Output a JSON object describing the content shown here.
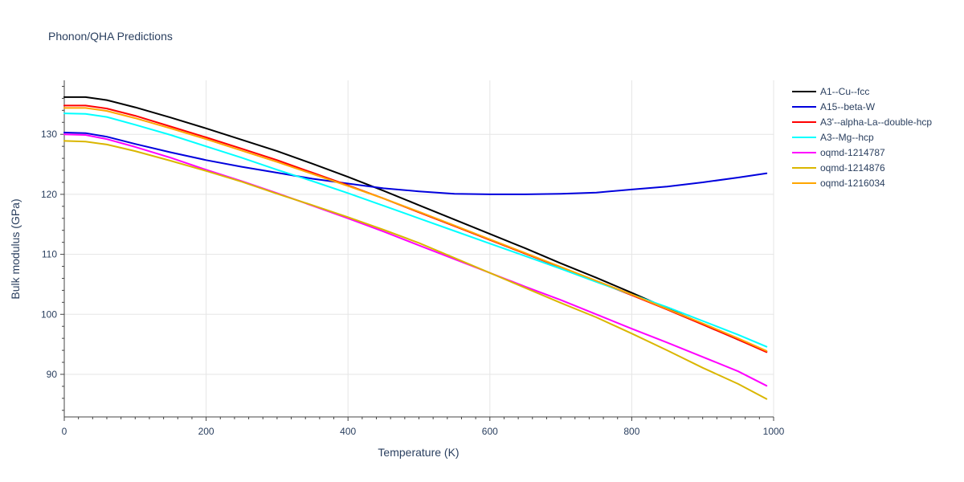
{
  "chart_data": {
    "type": "line",
    "title": "Phonon/QHA Predictions",
    "xlabel": "Temperature (K)",
    "ylabel": "Bulk modulus (GPa)",
    "xlim": [
      0,
      1000
    ],
    "ylim": [
      82.9,
      139.0
    ],
    "xticks": [
      0,
      200,
      400,
      600,
      800,
      1000
    ],
    "yticks": [
      90,
      100,
      110,
      120,
      130
    ],
    "grid": true,
    "legend_position": "right",
    "series": [
      {
        "name": "A1--Cu--fcc",
        "color": "#000000",
        "x": [
          0,
          30,
          60,
          100,
          150,
          200,
          250,
          300,
          350,
          400,
          450,
          500,
          550,
          600,
          650,
          700,
          750,
          800,
          850,
          900,
          950,
          990
        ],
        "y": [
          136.2,
          136.2,
          135.7,
          134.5,
          132.8,
          131.0,
          129.1,
          127.2,
          125.1,
          122.9,
          120.6,
          118.2,
          115.8,
          113.4,
          111.0,
          108.5,
          106.1,
          103.6,
          101.0,
          98.4,
          95.8,
          93.8
        ]
      },
      {
        "name": "A15--beta-W",
        "color": "#0000dd",
        "x": [
          0,
          30,
          60,
          100,
          150,
          200,
          250,
          300,
          350,
          400,
          450,
          500,
          550,
          600,
          650,
          700,
          750,
          800,
          850,
          900,
          950,
          990
        ],
        "y": [
          130.3,
          130.2,
          129.6,
          128.4,
          127.0,
          125.7,
          124.6,
          123.6,
          122.6,
          121.8,
          121.0,
          120.5,
          120.1,
          120.0,
          120.0,
          120.1,
          120.3,
          120.8,
          121.3,
          122.0,
          122.8,
          123.5
        ]
      },
      {
        "name": "A3'--alpha-La--double-hcp",
        "color": "#ff0000",
        "x": [
          0,
          30,
          60,
          100,
          150,
          200,
          250,
          300,
          350,
          400,
          450,
          500,
          550,
          600,
          650,
          700,
          750,
          800,
          850,
          900,
          950,
          990
        ],
        "y": [
          134.8,
          134.8,
          134.3,
          133.1,
          131.3,
          129.5,
          127.6,
          125.7,
          123.6,
          121.5,
          119.3,
          117.0,
          114.7,
          112.4,
          110.1,
          107.8,
          105.5,
          103.2,
          100.8,
          98.3,
          95.8,
          93.7
        ]
      },
      {
        "name": "A3--Mg--hcp",
        "color": "#00ffff",
        "x": [
          0,
          30,
          60,
          100,
          150,
          200,
          250,
          300,
          350,
          400,
          450,
          500,
          550,
          600,
          650,
          700,
          750,
          800,
          850,
          900,
          950,
          990
        ],
        "y": [
          133.5,
          133.4,
          132.9,
          131.6,
          129.9,
          128.0,
          126.1,
          124.1,
          122.2,
          120.2,
          118.1,
          116.0,
          113.9,
          111.8,
          109.7,
          107.6,
          105.4,
          103.3,
          101.2,
          98.9,
          96.6,
          94.6
        ]
      },
      {
        "name": "oqmd-1214787",
        "color": "#ff00ff",
        "x": [
          0,
          30,
          60,
          100,
          150,
          200,
          250,
          300,
          350,
          400,
          450,
          500,
          550,
          600,
          650,
          700,
          750,
          800,
          850,
          900,
          950,
          990
        ],
        "y": [
          130.0,
          129.9,
          129.2,
          127.9,
          126.1,
          124.1,
          122.2,
          120.2,
          118.1,
          116.0,
          113.8,
          111.5,
          109.2,
          106.9,
          104.6,
          102.4,
          100.0,
          97.6,
          95.3,
          92.9,
          90.5,
          88.1
        ]
      },
      {
        "name": "oqmd-1214876",
        "color": "#dab600",
        "x": [
          0,
          30,
          60,
          100,
          150,
          200,
          250,
          300,
          350,
          400,
          450,
          500,
          550,
          600,
          650,
          700,
          750,
          800,
          850,
          900,
          950,
          990
        ],
        "y": [
          128.9,
          128.8,
          128.3,
          127.2,
          125.6,
          123.9,
          122.1,
          120.1,
          118.2,
          116.2,
          114.1,
          111.9,
          109.4,
          106.9,
          104.4,
          101.9,
          99.5,
          96.8,
          94.0,
          91.1,
          88.4,
          85.9
        ]
      },
      {
        "name": "oqmd-1216034",
        "color": "#ffa500",
        "x": [
          0,
          30,
          60,
          100,
          150,
          200,
          250,
          300,
          350,
          400,
          450,
          500,
          550,
          600,
          650,
          700,
          750,
          800,
          850,
          900,
          950,
          990
        ],
        "y": [
          134.4,
          134.4,
          133.9,
          132.7,
          131.0,
          129.2,
          127.3,
          125.4,
          123.4,
          121.4,
          119.3,
          117.1,
          114.8,
          112.5,
          110.2,
          107.9,
          105.6,
          103.3,
          100.9,
          98.5,
          96.0,
          93.9
        ]
      }
    ]
  }
}
